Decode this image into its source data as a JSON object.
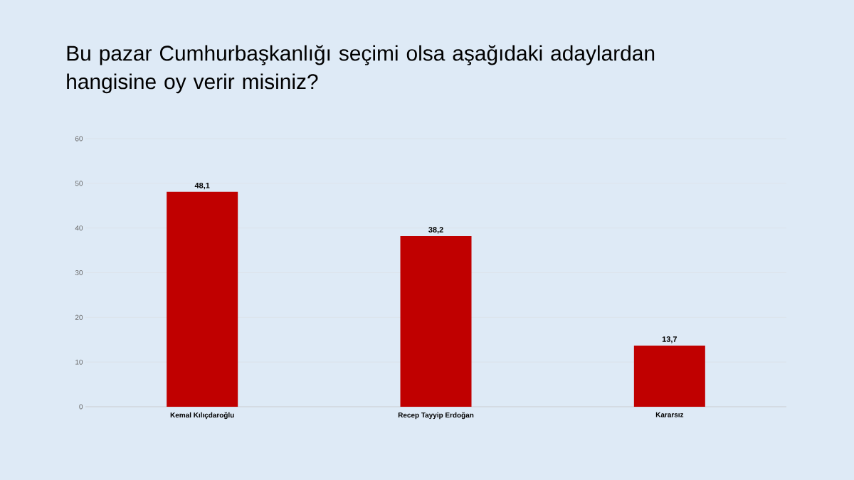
{
  "chart_data": {
    "type": "bar",
    "title": "Bu pazar Cumhurbaşkanlığı seçimi olsa aşağıdaki adaylardan hangisine oy verir misiniz?",
    "categories": [
      "Kemal Kılıçdaroğlu",
      "Recep Tayyip Erdoğan",
      "Kararsız"
    ],
    "values": [
      48.1,
      38.2,
      13.7
    ],
    "value_labels": [
      "48,1",
      "38,2",
      "13,7"
    ],
    "color": "#c00000",
    "ylim": [
      0,
      60
    ],
    "yticks": [
      0,
      10,
      20,
      30,
      40,
      50,
      60
    ],
    "grid": "y"
  }
}
